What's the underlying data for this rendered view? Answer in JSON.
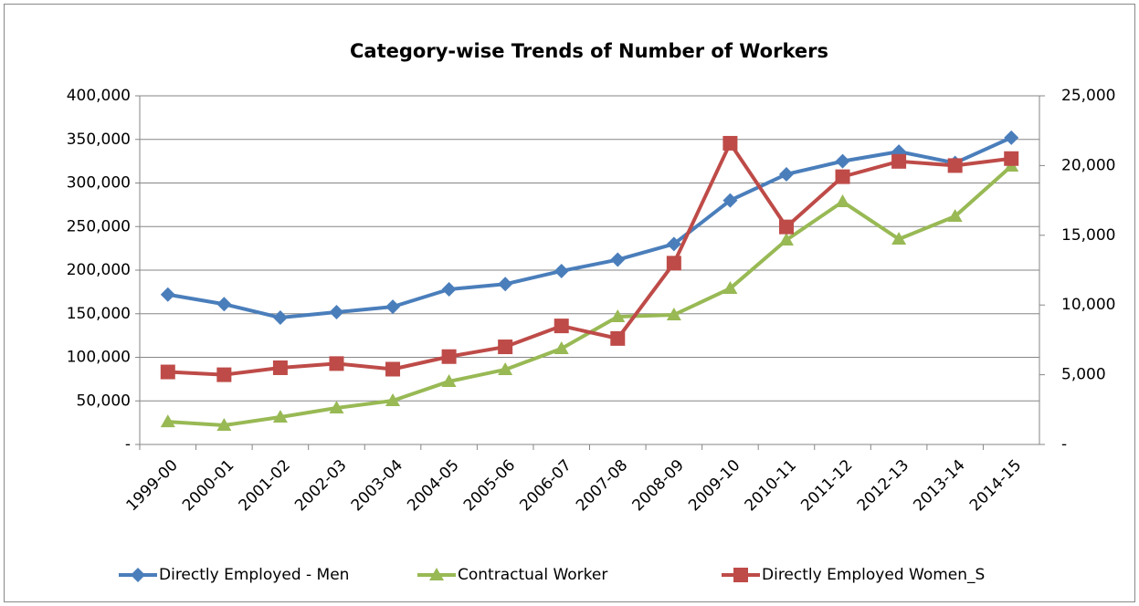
{
  "chart_data": {
    "type": "line",
    "title": "Category-wise Trends of Number of Workers",
    "categories": [
      "1999-00",
      "2000-01",
      "2001-02",
      "2002-03",
      "2003-04",
      "2004-05",
      "2005-06",
      "2006-07",
      "2007-08",
      "2008-09",
      "2009-10",
      "2010-11",
      "2011-12",
      "2012-13",
      "2013-14",
      "2014-15"
    ],
    "series": [
      {
        "name": "Directly Employed - Men",
        "color": "#4a7ebb",
        "marker": "diamond",
        "axis": "y",
        "values": [
          172000,
          161000,
          145500,
          151800,
          158000,
          178000,
          184000,
          199000,
          212000,
          230000,
          280000,
          310000,
          325000,
          336000,
          323000,
          352000
        ]
      },
      {
        "name": "Contractual Worker",
        "color": "#98b954",
        "marker": "triangle",
        "axis": "y",
        "values": [
          26000,
          22000,
          31400,
          41900,
          50300,
          72300,
          85900,
          110000,
          146600,
          148700,
          179000,
          234600,
          278500,
          235600,
          261800,
          319400
        ]
      },
      {
        "name": "Directly Employed Women_S",
        "color": "#be4b48",
        "marker": "square",
        "axis": "y2",
        "values": [
          5200,
          5000,
          5500,
          5800,
          5400,
          6300,
          7000,
          8500,
          7600,
          13000,
          21600,
          15600,
          19200,
          20300,
          20000,
          20500
        ]
      }
    ],
    "ylim": [
      0,
      400000
    ],
    "yticks": [
      {
        "value": 0,
        "label": "-"
      },
      {
        "value": 50000,
        "label": "50,000"
      },
      {
        "value": 100000,
        "label": "100,000"
      },
      {
        "value": 150000,
        "label": "150,000"
      },
      {
        "value": 200000,
        "label": "200,000"
      },
      {
        "value": 250000,
        "label": "250,000"
      },
      {
        "value": 300000,
        "label": "300,000"
      },
      {
        "value": 350000,
        "label": "350,000"
      },
      {
        "value": 400000,
        "label": "400,000"
      }
    ],
    "y2lim": [
      0,
      25000
    ],
    "y2ticks": [
      {
        "value": 0,
        "label": "-"
      },
      {
        "value": 5000,
        "label": "5,000"
      },
      {
        "value": 10000,
        "label": "10,000"
      },
      {
        "value": 15000,
        "label": "15,000"
      },
      {
        "value": 20000,
        "label": "20,000"
      },
      {
        "value": 25000,
        "label": "25,000"
      }
    ],
    "grid": true,
    "legend": "bottom"
  }
}
